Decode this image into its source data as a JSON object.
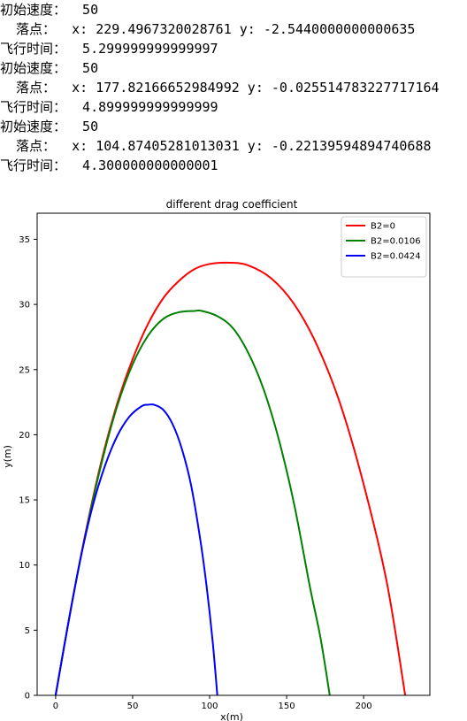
{
  "output_lines": [
    "初始速度：  50",
    "  落点：  x: 229.4967320028761 y: -2.5440000000000635",
    "飞行时间：  5.299999999999997",
    "初始速度：  50",
    "  落点：  x: 177.82166652984992 y: -0.025514783227717164",
    "飞行时间：  4.899999999999999",
    "初始速度：  50",
    "  落点：  x: 104.87405281013031 y: -0.22139594894740688",
    "飞行时间：  4.300000000000001"
  ],
  "chart_data": {
    "type": "line",
    "title": "different drag coefficient",
    "xlabel": "x(m)",
    "ylabel": "y(m)",
    "xlim": [
      -12,
      243
    ],
    "ylim": [
      0,
      37
    ],
    "xticks": [
      0,
      50,
      100,
      150,
      200
    ],
    "yticks": [
      0,
      5,
      10,
      15,
      20,
      25,
      30,
      35
    ],
    "legend_position": "top-right",
    "grid": false,
    "series": [
      {
        "name": "B2=0",
        "color": "#ff0000",
        "x": [
          0,
          10,
          20,
          30,
          40,
          50,
          60,
          70,
          80,
          90,
          100,
          113,
          125,
          140,
          155,
          170,
          185,
          200,
          215,
          227
        ],
        "y": [
          0,
          6.7,
          12.8,
          18.1,
          22.4,
          25.8,
          28.5,
          30.5,
          31.8,
          32.7,
          33.1,
          33.2,
          33.0,
          32.0,
          30.0,
          26.8,
          22.3,
          16.2,
          8.7,
          0
        ]
      },
      {
        "name": "B2=0.0106",
        "color": "#008000",
        "x": [
          0,
          10,
          20,
          30,
          40,
          50,
          60,
          70,
          80,
          90,
          95,
          105,
          115,
          125,
          135,
          145,
          155,
          165,
          172,
          178
        ],
        "y": [
          0,
          6.7,
          12.7,
          17.9,
          22.2,
          25.4,
          27.6,
          28.9,
          29.4,
          29.5,
          29.5,
          29.1,
          28.2,
          26.3,
          23.5,
          19.6,
          14.6,
          8.4,
          4.4,
          0
        ]
      },
      {
        "name": "B2=0.0424",
        "color": "#0000ff",
        "x": [
          0,
          8,
          16,
          24,
          32,
          40,
          48,
          56,
          60,
          64,
          70,
          76,
          82,
          88,
          94,
          98,
          102,
          105
        ],
        "y": [
          0,
          5.4,
          10.4,
          14.5,
          17.6,
          19.9,
          21.4,
          22.2,
          22.3,
          22.3,
          21.9,
          20.8,
          18.9,
          16.1,
          11.9,
          8.4,
          4.1,
          0
        ]
      }
    ]
  }
}
